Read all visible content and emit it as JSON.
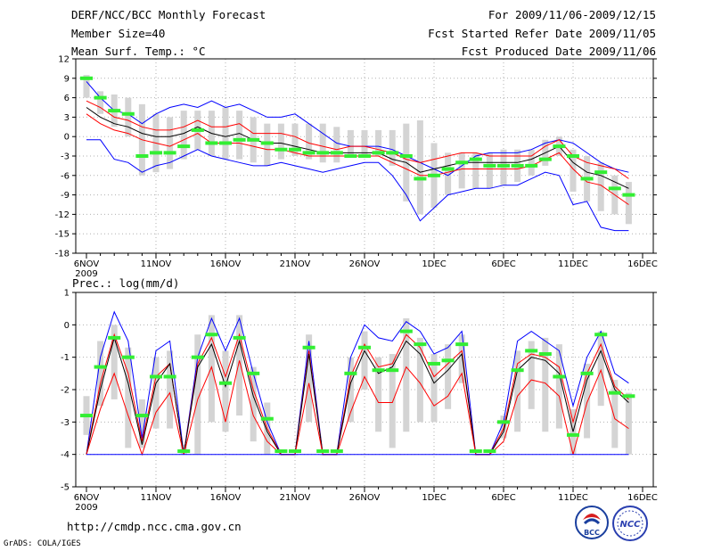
{
  "header": {
    "left": [
      "DERF/NCC/BCC Monthly Forecast",
      "Member Size=40",
      "Mean Surf. Temp.: °C"
    ],
    "right": [
      "For 2009/11/06-2009/12/15",
      "Fcst Started Refer Date 2009/11/05",
      "Fcst Produced Date 2009/11/06"
    ]
  },
  "footer": {
    "url": "http://cmdp.ncc.cma.gov.cn",
    "grads": "GrADS: COLA/IGES"
  },
  "logos": {
    "bcc": "BCC",
    "ncc": "NCC"
  },
  "colors": {
    "envelope": "#0000ff",
    "spread": "#ff0000",
    "mean": "#000000",
    "box": "#d4d4d4",
    "median": "#33ee33"
  },
  "chart_data": [
    {
      "type": "line",
      "title": "Mean Surf. Temp.: °C",
      "x_tick_labels": [
        "6NOV",
        "11NOV",
        "16NOV",
        "21NOV",
        "26NOV",
        "1DEC",
        "6DEC",
        "11DEC",
        "16DEC"
      ],
      "x_year_label": "2009",
      "y_ticks": [
        12,
        9,
        6,
        3,
        0,
        -3,
        -6,
        -9,
        -12,
        -15,
        -18
      ],
      "ylim": [
        -18,
        12
      ],
      "days": 40,
      "series": [
        {
          "name": "max",
          "values": [
            8.5,
            6,
            4,
            3.5,
            2,
            3.5,
            4.5,
            5,
            4.5,
            5.5,
            4.5,
            5,
            4,
            3,
            3,
            3.5,
            2,
            0.5,
            -1,
            -1.5,
            -1.5,
            -1.5,
            -2,
            -3,
            -4,
            -5,
            -6,
            -4.5,
            -3,
            -2.5,
            -2.5,
            -2.5,
            -2,
            -1,
            -0.5,
            -1,
            -2.5,
            -4,
            -5,
            -5.5
          ]
        },
        {
          "name": "upper",
          "values": [
            5.5,
            4.5,
            3,
            2.5,
            1.5,
            1,
            1,
            1.5,
            2.5,
            1.5,
            1.5,
            2,
            0.5,
            0.5,
            0.5,
            0,
            -1,
            -1.5,
            -2,
            -1.5,
            -1.5,
            -2,
            -2.5,
            -3.5,
            -4,
            -3.5,
            -3,
            -2.5,
            -2.5,
            -3,
            -3,
            -3,
            -3,
            -1.5,
            -0.5,
            -3,
            -4,
            -4.5,
            -5,
            -6.5
          ]
        },
        {
          "name": "mean",
          "values": [
            4.5,
            3,
            2,
            1.5,
            0.5,
            0,
            0,
            0.5,
            1.5,
            0.5,
            0,
            0.5,
            -0.5,
            -1,
            -1,
            -1.5,
            -2,
            -2.5,
            -2.5,
            -2.5,
            -2.5,
            -2.5,
            -3.5,
            -4,
            -5.5,
            -5,
            -4.5,
            -4,
            -4,
            -4,
            -4,
            -4,
            -3.5,
            -2.5,
            -1.5,
            -4,
            -5.5,
            -6,
            -7,
            -8
          ]
        },
        {
          "name": "lower",
          "values": [
            3.5,
            2,
            1,
            0.5,
            -0.5,
            -1,
            -1.5,
            -0.5,
            0.5,
            -1,
            -1,
            -1,
            -1.5,
            -2,
            -2,
            -2.5,
            -3,
            -3,
            -3,
            -3,
            -3,
            -3,
            -4,
            -5,
            -6,
            -6,
            -5.5,
            -5,
            -5,
            -5,
            -5,
            -5,
            -4.5,
            -3.5,
            -2.5,
            -5,
            -7,
            -7.5,
            -9,
            -10.5
          ]
        },
        {
          "name": "min",
          "values": [
            -0.5,
            -0.5,
            -3.5,
            -4,
            -5.5,
            -4.5,
            -4,
            -3,
            -2,
            -3,
            -3.5,
            -4,
            -4.5,
            -4.5,
            -4,
            -4.5,
            -5,
            -5.5,
            -5,
            -4.5,
            -4,
            -4,
            -6,
            -9,
            -13,
            -11,
            -9,
            -8.5,
            -8,
            -8,
            -7.5,
            -7.5,
            -6.5,
            -5.5,
            -6,
            -10.5,
            -10,
            -14,
            -14.5,
            -14.5
          ]
        }
      ],
      "boxes": {
        "high": [
          9.5,
          7,
          6.5,
          6,
          5,
          3.5,
          3,
          4,
          4,
          4,
          4.5,
          4,
          3,
          2,
          2,
          2,
          2,
          2,
          1.5,
          1,
          1,
          1,
          1,
          2,
          2.5,
          -1,
          -2.5,
          -2.5,
          -2.5,
          -2.5,
          -2,
          -2,
          -2,
          -0.5,
          0,
          -2,
          -3,
          -4,
          -6,
          -7
        ],
        "low": [
          6,
          3.5,
          1.5,
          0,
          -6,
          -5.5,
          -5,
          -3.5,
          -2,
          -3,
          -3.5,
          -3.5,
          -4,
          -4.5,
          -3.5,
          -3,
          -3.5,
          -4,
          -4,
          -3,
          -3,
          -3,
          -4.5,
          -10,
          -12,
          -11,
          -9,
          -8,
          -8,
          -8,
          -7.5,
          -7,
          -6,
          -4.5,
          -3,
          -8.5,
          -10,
          -11.5,
          -12,
          -13.5
        ],
        "median": [
          9,
          6,
          4,
          3.5,
          -3,
          -2.5,
          -2.5,
          -1.5,
          1,
          -1,
          -1,
          -0.5,
          -0.5,
          -1,
          -2,
          -2,
          -2.5,
          -2.5,
          -2.5,
          -3,
          -3,
          -2.5,
          -2.5,
          -3,
          -6.5,
          -6,
          -5,
          -4,
          -3.5,
          -4.5,
          -4.5,
          -4.5,
          -4.5,
          -3.5,
          -1.5,
          -3,
          -6.5,
          -5.5,
          -8,
          -9
        ]
      }
    },
    {
      "type": "line",
      "title": "Prec.: log(mm/d)",
      "x_tick_labels": [
        "6NOV",
        "11NOV",
        "16NOV",
        "21NOV",
        "26NOV",
        "1DEC",
        "6DEC",
        "11DEC",
        "16DEC"
      ],
      "x_year_label": "2009",
      "y_ticks": [
        1,
        0,
        -1,
        -2,
        -3,
        -4,
        -5
      ],
      "ylim": [
        -5,
        1
      ],
      "days": 40,
      "series": [
        {
          "name": "max",
          "values": [
            -4,
            -1,
            0.4,
            -0.5,
            -3.5,
            -0.8,
            -0.5,
            -4,
            -1,
            0.2,
            -0.8,
            0.2,
            -1.5,
            -3,
            -4,
            -4,
            -0.5,
            -4,
            -4,
            -1,
            0,
            -0.4,
            -0.5,
            0.1,
            -0.2,
            -0.9,
            -0.7,
            -0.2,
            -4,
            -4,
            -3,
            -0.5,
            -0.2,
            -0.5,
            -0.8,
            -2.5,
            -1,
            -0.2,
            -1.5,
            -1.8
          ]
        },
        {
          "name": "upper",
          "values": [
            -4,
            -1.8,
            -0.3,
            -1.5,
            -3.6,
            -1.6,
            -1.2,
            -4,
            -1.2,
            -0.4,
            -1.6,
            -0.3,
            -2,
            -3.2,
            -4,
            -4,
            -0.8,
            -4,
            -4,
            -1.6,
            -0.6,
            -1.3,
            -1.2,
            -0.3,
            -0.7,
            -1.6,
            -1.2,
            -0.8,
            -4,
            -4,
            -3.2,
            -1.2,
            -0.9,
            -1,
            -1.3,
            -3,
            -1.5,
            -0.6,
            -1.9,
            -2.3
          ]
        },
        {
          "name": "mean",
          "values": [
            -4,
            -2,
            -0.4,
            -1.8,
            -3.7,
            -1.8,
            -1.2,
            -4,
            -1.3,
            -0.6,
            -1.9,
            -0.5,
            -2.2,
            -3.3,
            -4,
            -4,
            -0.9,
            -4,
            -4,
            -1.8,
            -0.8,
            -1.5,
            -1.3,
            -0.5,
            -0.9,
            -1.8,
            -1.4,
            -0.9,
            -4,
            -4,
            -3.3,
            -1.4,
            -1,
            -1.1,
            -1.5,
            -3.3,
            -1.7,
            -0.8,
            -2,
            -2.4
          ]
        },
        {
          "name": "lower",
          "values": [
            -4,
            -2.6,
            -1.5,
            -2.8,
            -4,
            -2.7,
            -2.1,
            -4,
            -2.3,
            -1.3,
            -3,
            -1.1,
            -2.8,
            -3.6,
            -4,
            -4,
            -1.8,
            -4,
            -4,
            -2.7,
            -1.6,
            -2.4,
            -2.4,
            -1.3,
            -1.8,
            -2.5,
            -2.2,
            -1.5,
            -4,
            -4,
            -3.6,
            -2.2,
            -1.7,
            -1.8,
            -2.2,
            -4,
            -2.4,
            -1.4,
            -2.9,
            -3.2
          ]
        },
        {
          "name": "min",
          "values": [
            -4,
            -4,
            -4,
            -4,
            -4,
            -4,
            -4,
            -4,
            -4,
            -4,
            -4,
            -4,
            -4,
            -4,
            -4,
            -4,
            -4,
            -4,
            -4,
            -4,
            -4,
            -4,
            -4,
            -4,
            -4,
            -4,
            -4,
            -4,
            -4,
            -4,
            -4,
            -4,
            -4,
            -4,
            -4,
            -4,
            -4,
            -4,
            -4,
            -4
          ]
        }
      ],
      "boxes": {
        "high": [
          -2.2,
          -0.5,
          0,
          -0.7,
          -2.3,
          -1,
          -0.8,
          -3.7,
          -0.3,
          0.3,
          -0.8,
          0.3,
          -1.3,
          -2.4,
          -4,
          -4,
          -0.3,
          -4,
          -4,
          -1,
          -0.2,
          -1,
          -0.9,
          0.2,
          -0.4,
          -0.9,
          -0.6,
          -0.3,
          -4,
          -4,
          -2.8,
          -0.8,
          -0.5,
          -0.4,
          -0.6,
          -2.6,
          -1.2,
          -0.2,
          -1.7,
          -2.1
        ],
        "low": [
          -3.4,
          -2.5,
          -2.3,
          -3.8,
          -3.8,
          -3.2,
          -3.2,
          -4,
          -4,
          -3,
          -3.3,
          -2.8,
          -3.6,
          -4,
          -4,
          -4,
          -3,
          -4,
          -4,
          -3,
          -2,
          -3.3,
          -3.8,
          -3.3,
          -3,
          -3,
          -2.6,
          -1.8,
          -4,
          -4,
          -3.5,
          -3.3,
          -2.6,
          -3.3,
          -3.2,
          -4,
          -3.5,
          -2.5,
          -3.8,
          -4
        ],
        "median": [
          -2.8,
          -1.3,
          -0.4,
          -1,
          -2.8,
          -1.6,
          -1.6,
          -3.9,
          -1,
          -0.3,
          -1.8,
          -0.4,
          -1.5,
          -2.9,
          -3.9,
          -3.9,
          -0.7,
          -3.9,
          -3.9,
          -1.5,
          -0.7,
          -1.4,
          -1.4,
          -0.2,
          -0.6,
          -1.2,
          -1.1,
          -0.6,
          -3.9,
          -3.9,
          -3,
          -1.4,
          -0.8,
          -0.9,
          -1.6,
          -3.4,
          -1.5,
          -0.3,
          -2.1,
          -2.2
        ]
      }
    }
  ]
}
